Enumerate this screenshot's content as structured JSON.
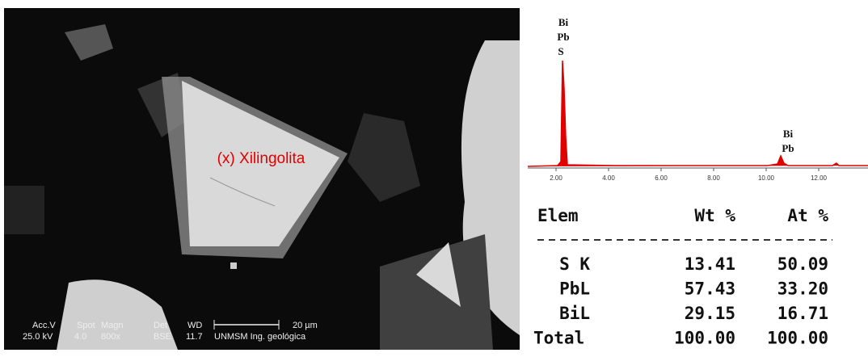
{
  "micrograph": {
    "label": "(x) Xilingolita",
    "info_header": [
      "Acc.V",
      "Spot",
      "Magn",
      "Det",
      "WD",
      "20 µm"
    ],
    "info_values": [
      "25.0 kV",
      "4.0",
      "800x",
      "BSE",
      "11.7",
      "UNMSM Ing. geológica"
    ]
  },
  "spectrum": {
    "peaks": [
      {
        "labels": [
          "Bi",
          "Pb",
          "S"
        ]
      },
      {
        "labels": [
          "Bi",
          "Pb"
        ]
      }
    ],
    "xticks": [
      {
        "value": 2,
        "label": "2.00"
      },
      {
        "value": 4,
        "label": "4.00"
      },
      {
        "value": 6,
        "label": "6.00"
      },
      {
        "value": 8,
        "label": "8.00"
      },
      {
        "value": 10,
        "label": "10.00"
      },
      {
        "value": 12,
        "label": "12.00"
      }
    ]
  },
  "table": {
    "header": [
      "Elem",
      "Wt %",
      "At %"
    ],
    "rows": [
      [
        "S K",
        "13.41",
        "50.09"
      ],
      [
        "PbL",
        "57.43",
        "33.20"
      ],
      [
        "BiL",
        "29.15",
        "16.71"
      ],
      [
        "Total",
        "100.00",
        "100.00"
      ]
    ]
  }
}
